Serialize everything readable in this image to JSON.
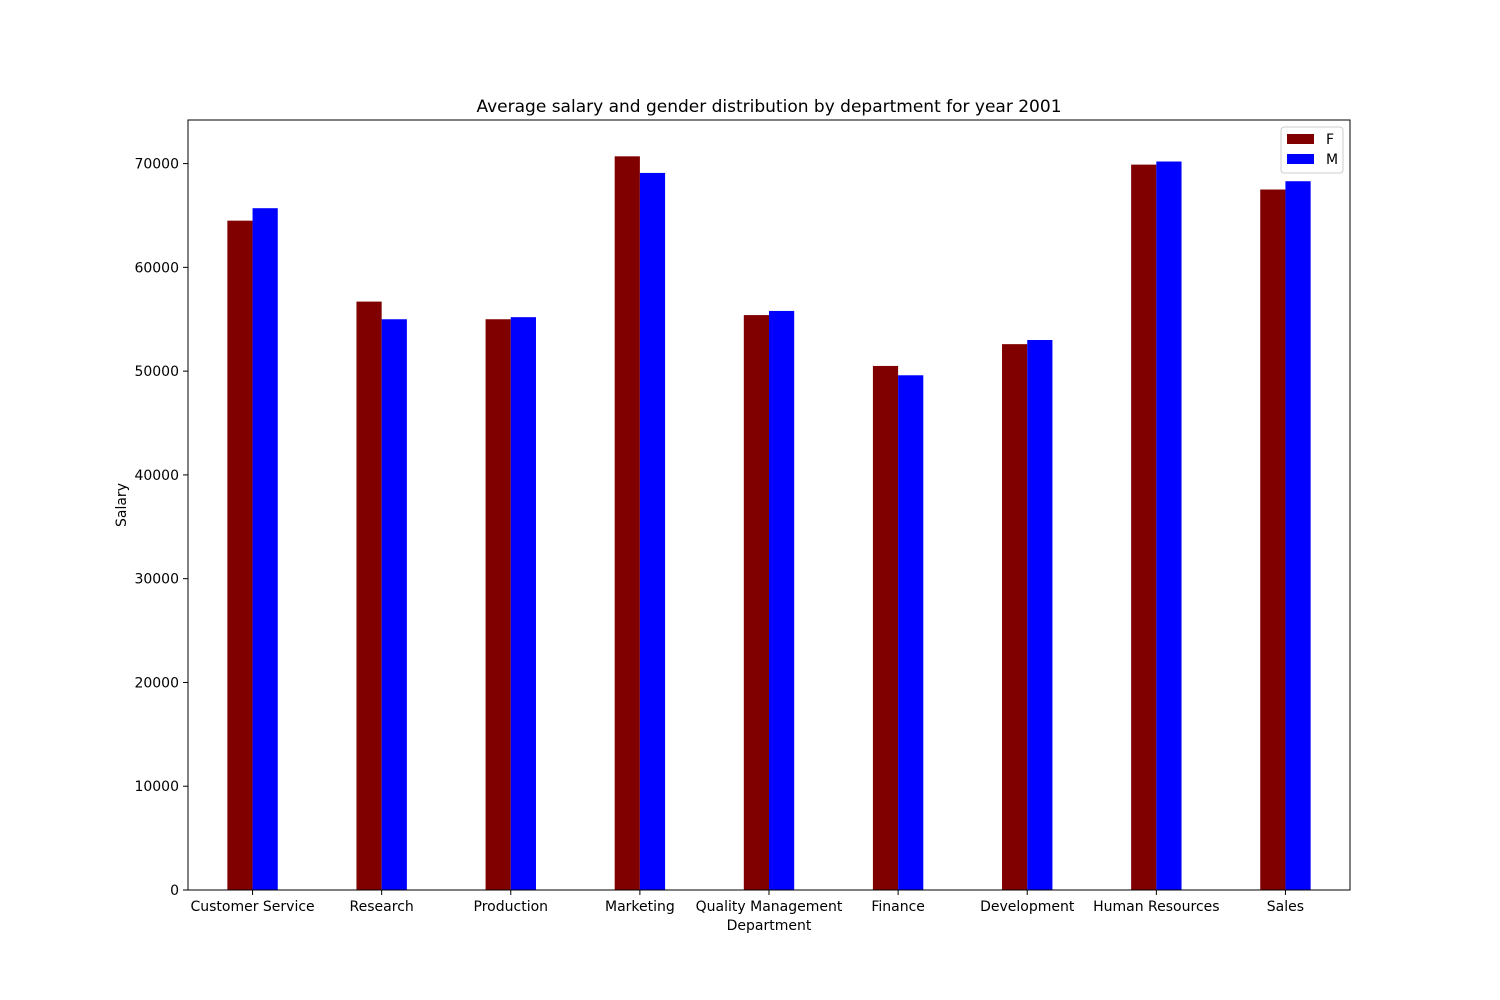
{
  "chart_data": {
    "type": "bar",
    "title": "Average salary and gender distribution by department for year 2001",
    "xlabel": "Department",
    "ylabel": "Salary",
    "categories": [
      "Customer Service",
      "Research",
      "Production",
      "Marketing",
      "Quality Management",
      "Finance",
      "Development",
      "Human Resources",
      "Sales"
    ],
    "series": [
      {
        "name": "F",
        "color": "#800000",
        "values": [
          64500,
          56700,
          55000,
          70700,
          55400,
          50500,
          52600,
          69900,
          67500
        ]
      },
      {
        "name": "M",
        "color": "#0000ff",
        "values": [
          65700,
          55000,
          55200,
          69100,
          55800,
          49600,
          53000,
          70200,
          68300
        ]
      }
    ],
    "ylim": [
      0,
      74200
    ],
    "yticks": [
      0,
      10000,
      20000,
      30000,
      40000,
      50000,
      60000,
      70000
    ],
    "grid": false,
    "legend_position": "top-right"
  }
}
